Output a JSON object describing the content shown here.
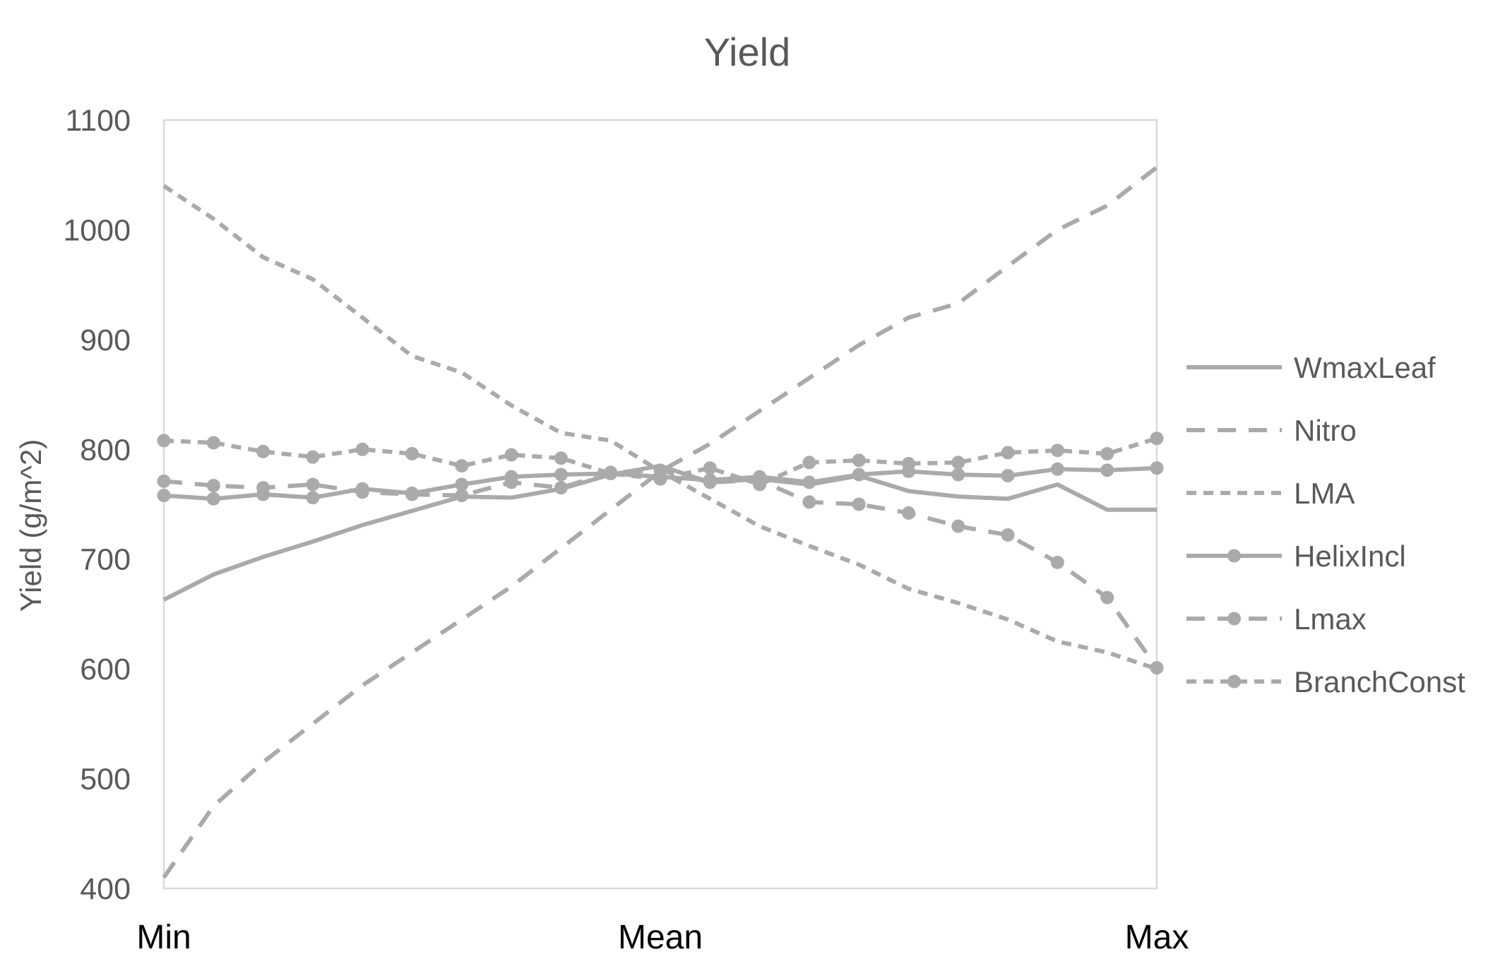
{
  "chart_data": {
    "type": "line",
    "title": "Yield",
    "xlabel": "",
    "ylabel": "Yield (g/m^2)",
    "ylim": [
      400,
      1100
    ],
    "yticks": [
      400,
      500,
      600,
      700,
      800,
      900,
      1000,
      1100
    ],
    "x_tick_labels": [
      "Min",
      "Mean",
      "Max"
    ],
    "x_tick_positions": [
      0,
      10,
      20
    ],
    "x": [
      0,
      1,
      2,
      3,
      4,
      5,
      6,
      7,
      8,
      9,
      10,
      11,
      12,
      13,
      14,
      15,
      16,
      17,
      18,
      19,
      20
    ],
    "grid": false,
    "legend_position": "right",
    "color": "#aaaaaa",
    "series": [
      {
        "name": "WmaxLeaf",
        "style": "solid",
        "markers": false,
        "values": [
          663,
          686,
          702,
          716,
          731,
          744,
          757,
          756,
          764,
          777,
          785,
          770,
          773,
          768,
          776,
          762,
          757,
          755,
          768,
          745,
          745
        ]
      },
      {
        "name": "Nitro",
        "style": "long-dash",
        "markers": false,
        "values": [
          410,
          475,
          515,
          550,
          585,
          615,
          645,
          675,
          710,
          745,
          780,
          805,
          835,
          865,
          895,
          920,
          933,
          967,
          1000,
          1022,
          1057
        ]
      },
      {
        "name": "LMA",
        "style": "short-dash",
        "markers": false,
        "values": [
          1040,
          1010,
          975,
          955,
          920,
          885,
          870,
          840,
          815,
          808,
          780,
          755,
          730,
          712,
          695,
          673,
          660,
          645,
          625,
          615,
          600
        ]
      },
      {
        "name": "HelixIncl",
        "style": "solid",
        "markers": true,
        "values": [
          758,
          755,
          759,
          756,
          764,
          760,
          768,
          775,
          777,
          778,
          775,
          772,
          775,
          770,
          777,
          780,
          777,
          776,
          782,
          781,
          783
        ]
      },
      {
        "name": "Lmax",
        "style": "long-dash",
        "markers": true,
        "values": [
          771,
          767,
          765,
          768,
          761,
          759,
          758,
          770,
          765,
          779,
          781,
          770,
          772,
          752,
          750,
          742,
          730,
          722,
          697,
          665,
          601
        ]
      },
      {
        "name": "BranchConst",
        "style": "short-dash",
        "markers": true,
        "values": [
          808,
          806,
          798,
          793,
          800,
          796,
          785,
          795,
          792,
          778,
          773,
          783,
          768,
          788,
          790,
          787,
          788,
          797,
          799,
          796,
          810
        ]
      }
    ]
  }
}
